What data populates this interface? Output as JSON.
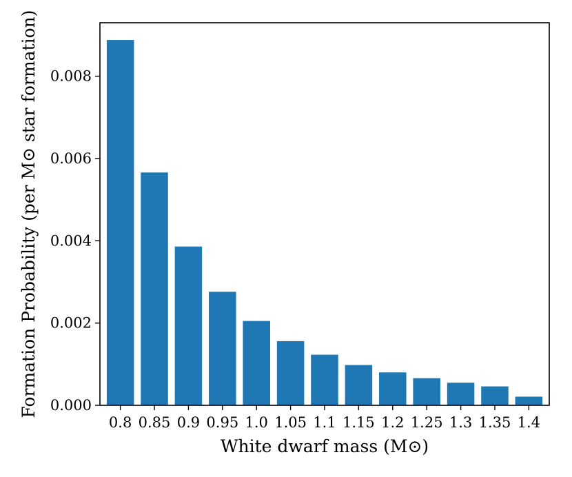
{
  "chart_data": {
    "type": "bar",
    "categories": [
      "0.8",
      "0.85",
      "0.9",
      "0.95",
      "1.0",
      "1.05",
      "1.1",
      "1.15",
      "1.2",
      "1.25",
      "1.3",
      "1.35",
      "1.4"
    ],
    "values": [
      0.00888,
      0.00566,
      0.00386,
      0.00276,
      0.00205,
      0.00156,
      0.00123,
      0.00098,
      0.0008,
      0.00066,
      0.00055,
      0.00046,
      0.00021
    ],
    "title": "",
    "xlabel": "White dwarf mass (M⊙)",
    "ylabel": "Formation Probability (per M⊙ star formation)",
    "ylim": [
      0,
      0.0093
    ],
    "yticks": [
      "0.000",
      "0.002",
      "0.004",
      "0.006",
      "0.008"
    ],
    "ytick_values": [
      0,
      0.002,
      0.004,
      0.006,
      0.008
    ],
    "bar_color": "#1f77b4",
    "grid": false,
    "legend": "none"
  }
}
